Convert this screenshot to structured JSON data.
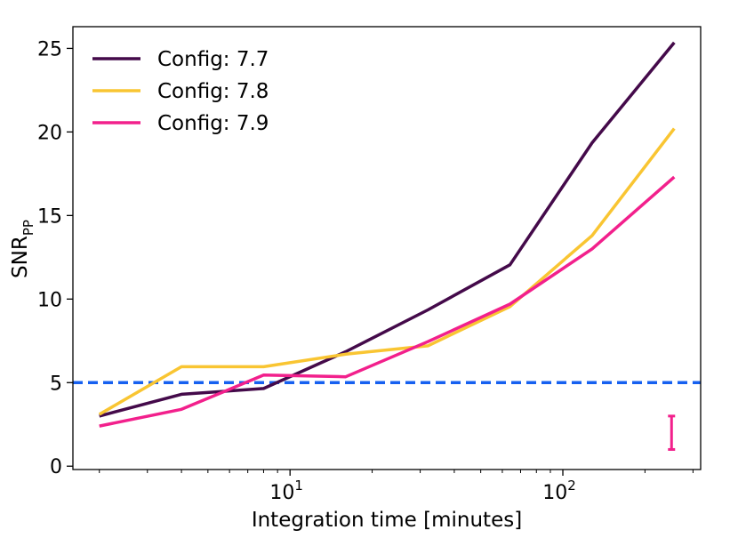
{
  "chart_data": {
    "type": "line",
    "title": "",
    "xlabel": "Integration time [minutes]",
    "ylabel": "SNR",
    "ylabel_subscript": "PP",
    "x_scale": "log",
    "xlim": [
      1.6,
      320
    ],
    "ylim": [
      -0.2,
      26.3
    ],
    "x_ticks": [
      {
        "value": 10,
        "base": "10",
        "exp": "1"
      },
      {
        "value": 100,
        "base": "10",
        "exp": "2"
      }
    ],
    "y_ticks": [
      0,
      5,
      10,
      15,
      20,
      25
    ],
    "x": [
      2,
      4,
      8,
      16,
      32,
      64,
      128,
      256
    ],
    "series": [
      {
        "name": "Config: 7.7",
        "color": "#440a4a",
        "values": [
          3.0,
          4.3,
          4.65,
          6.85,
          9.35,
          12.05,
          19.35,
          25.35
        ]
      },
      {
        "name": "Config: 7.8",
        "color": "#f9c532",
        "values": [
          3.1,
          5.95,
          5.95,
          6.7,
          7.2,
          9.55,
          13.8,
          20.2
        ]
      },
      {
        "name": "Config: 7.9",
        "color": "#f2208c",
        "values": [
          2.4,
          3.4,
          5.45,
          5.35,
          7.45,
          9.7,
          13.0,
          17.3
        ]
      }
    ],
    "reference_line": {
      "y": 5,
      "color": "#1660f0",
      "style": "dashed"
    },
    "error_bar": {
      "x": 256,
      "low": 1.0,
      "high": 3.0,
      "color": "#f2208c"
    },
    "legend_position": "top-left",
    "grid": false
  }
}
